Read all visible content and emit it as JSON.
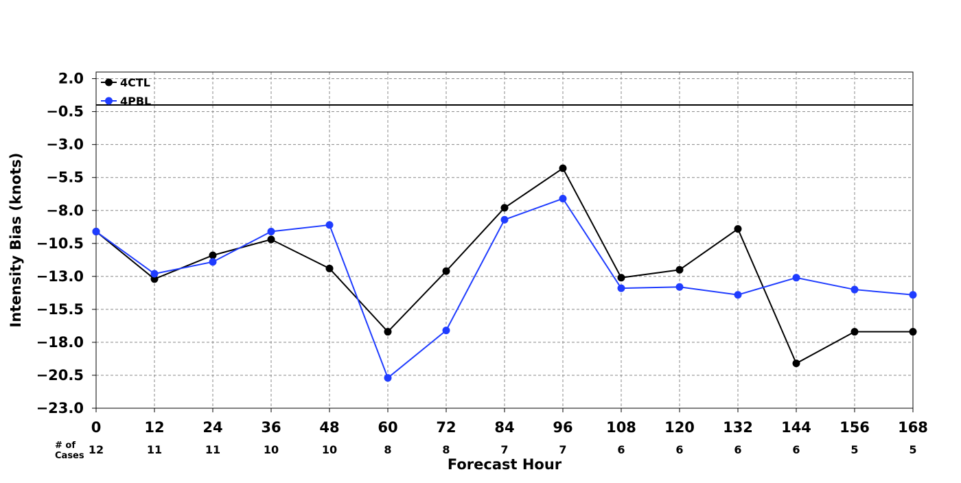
{
  "chart_data": {
    "type": "line",
    "title": "",
    "xlabel": "Forecast Hour",
    "ylabel": "Intensity Bias (knots)",
    "x": [
      0,
      12,
      24,
      36,
      48,
      60,
      72,
      84,
      96,
      108,
      120,
      132,
      144,
      156,
      168
    ],
    "xlim": [
      0,
      168
    ],
    "ylim": [
      -23.0,
      2.5
    ],
    "x_ticks": [
      "0",
      "12",
      "24",
      "36",
      "48",
      "60",
      "72",
      "84",
      "96",
      "108",
      "120",
      "132",
      "144",
      "156",
      "168"
    ],
    "y_ticks": [
      2.0,
      -0.5,
      -3.0,
      -5.5,
      -8.0,
      -10.5,
      -13.0,
      -15.5,
      -18.0,
      -20.5,
      -23.0
    ],
    "y_tick_labels": [
      "2.0",
      "−0.5",
      "−3.0",
      "−5.5",
      "−8.0",
      "−10.5",
      "−13.0",
      "−15.5",
      "−18.0",
      "−20.5",
      "−23.0"
    ],
    "reference_line_y": 0.0,
    "grid": true,
    "legend_position": "top-left",
    "cases_label": [
      "# of",
      "Cases"
    ],
    "cases": [
      "12",
      "11",
      "11",
      "10",
      "10",
      "8",
      "8",
      "7",
      "7",
      "6",
      "6",
      "6",
      "6",
      "5",
      "5"
    ],
    "series": [
      {
        "name": "4CTL",
        "color": "#000000",
        "values": [
          -9.6,
          -13.2,
          -11.4,
          -10.2,
          -12.4,
          -17.2,
          -12.6,
          -7.8,
          -4.8,
          -13.1,
          -12.5,
          -9.4,
          -19.6,
          -17.2,
          -17.2
        ]
      },
      {
        "name": "4PBL",
        "color": "#1f3cff",
        "values": [
          -9.6,
          -12.8,
          -11.9,
          -9.6,
          -9.1,
          -20.7,
          -17.1,
          -8.7,
          -7.1,
          -13.9,
          -13.8,
          -14.4,
          -13.1,
          -14.0,
          -14.4
        ]
      }
    ]
  }
}
